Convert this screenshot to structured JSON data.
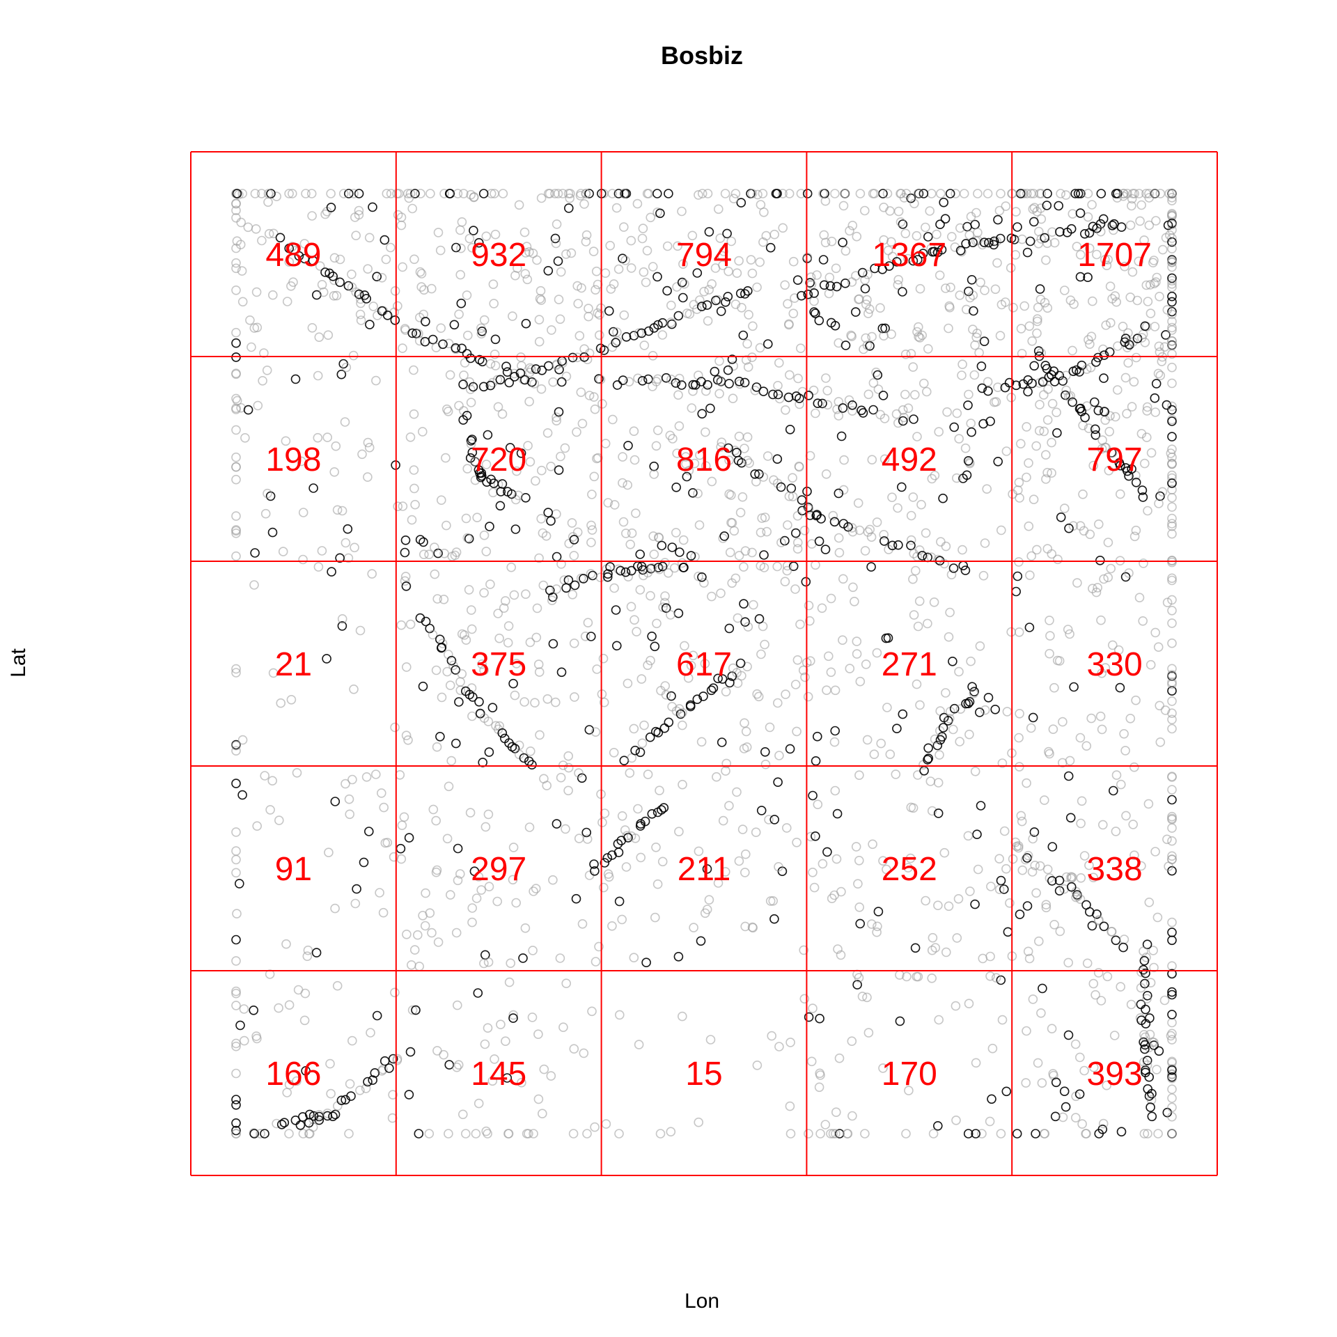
{
  "chart_data": {
    "type": "scatter",
    "title": "Bosbiz",
    "xlabel": "Lon",
    "ylabel": "Lat",
    "grid": {
      "columns": 5,
      "rows": 5,
      "color": "#ff0000"
    },
    "count_color": "#ff0000",
    "cell_counts": [
      [
        489,
        932,
        794,
        1367,
        1707
      ],
      [
        198,
        720,
        816,
        492,
        797
      ],
      [
        21,
        375,
        617,
        271,
        330
      ],
      [
        91,
        297,
        211,
        252,
        338
      ],
      [
        166,
        145,
        15,
        170,
        393
      ]
    ],
    "point_style": {
      "shape": "open-circle",
      "dark_color": "#000000",
      "light_color": "#999999"
    },
    "point_tracks_normalized_xy": [
      [
        [
          0.05,
          0.95
        ],
        [
          0.19,
          0.85
        ],
        [
          0.32,
          0.8
        ]
      ],
      [
        [
          0.25,
          0.79
        ],
        [
          0.35,
          0.82
        ],
        [
          0.55,
          0.9
        ]
      ],
      [
        [
          0.6,
          0.89
        ],
        [
          0.75,
          0.94
        ],
        [
          0.98,
          0.97
        ]
      ],
      [
        [
          0.41,
          0.8
        ],
        [
          0.52,
          0.8
        ],
        [
          0.72,
          0.76
        ]
      ],
      [
        [
          0.25,
          0.74
        ],
        [
          0.26,
          0.7
        ],
        [
          0.3,
          0.68
        ]
      ],
      [
        [
          0.2,
          0.55
        ],
        [
          0.26,
          0.45
        ],
        [
          0.32,
          0.39
        ]
      ],
      [
        [
          0.33,
          0.58
        ],
        [
          0.42,
          0.6
        ],
        [
          0.48,
          0.6
        ]
      ],
      [
        [
          0.42,
          0.4
        ],
        [
          0.54,
          0.5
        ]
      ],
      [
        [
          0.38,
          0.28
        ],
        [
          0.46,
          0.35
        ]
      ],
      [
        [
          0.73,
          0.38
        ],
        [
          0.76,
          0.44
        ],
        [
          0.79,
          0.47
        ]
      ],
      [
        [
          0.85,
          0.84
        ],
        [
          0.9,
          0.77
        ],
        [
          0.97,
          0.68
        ]
      ],
      [
        [
          0.8,
          0.79
        ],
        [
          0.9,
          0.81
        ],
        [
          0.98,
          0.86
        ]
      ],
      [
        [
          0.97,
          0.2
        ],
        [
          0.97,
          0.1
        ],
        [
          0.98,
          0.02
        ]
      ],
      [
        [
          0.83,
          0.31
        ],
        [
          0.9,
          0.25
        ],
        [
          0.95,
          0.2
        ]
      ],
      [
        [
          0.05,
          0.01
        ],
        [
          0.1,
          0.02
        ],
        [
          0.17,
          0.08
        ]
      ],
      [
        [
          0.52,
          0.73
        ],
        [
          0.62,
          0.66
        ],
        [
          0.78,
          0.6
        ]
      ]
    ]
  }
}
